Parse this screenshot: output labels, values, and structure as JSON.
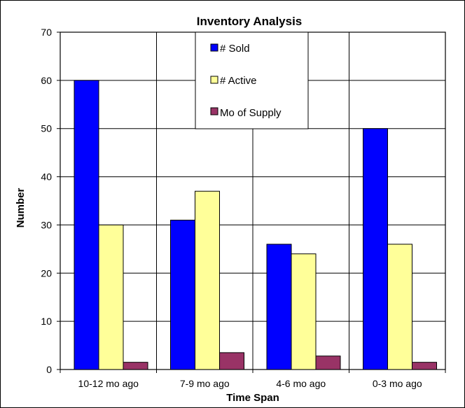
{
  "chart_data": {
    "type": "bar",
    "title": "Inventory Analysis",
    "xlabel": "Time Span",
    "ylabel": "Number",
    "categories": [
      "10-12 mo ago",
      "7-9 mo ago",
      "4-6 mo ago",
      "0-3 mo ago"
    ],
    "series": [
      {
        "name": "# Sold",
        "values": [
          60,
          31,
          26,
          50
        ],
        "color": "#0000FF"
      },
      {
        "name": "# Active",
        "values": [
          30,
          37,
          24,
          26
        ],
        "color": "#FFFF99"
      },
      {
        "name": "Mo of Supply",
        "values": [
          1.5,
          3.5,
          2.8,
          1.5
        ],
        "color": "#993366"
      }
    ],
    "ylim": [
      0,
      70
    ],
    "yticks": [
      "0",
      "10",
      "20",
      "30",
      "40",
      "50",
      "60",
      "70"
    ],
    "grid": "horizontal and vertical",
    "legend_position": "top-center"
  }
}
